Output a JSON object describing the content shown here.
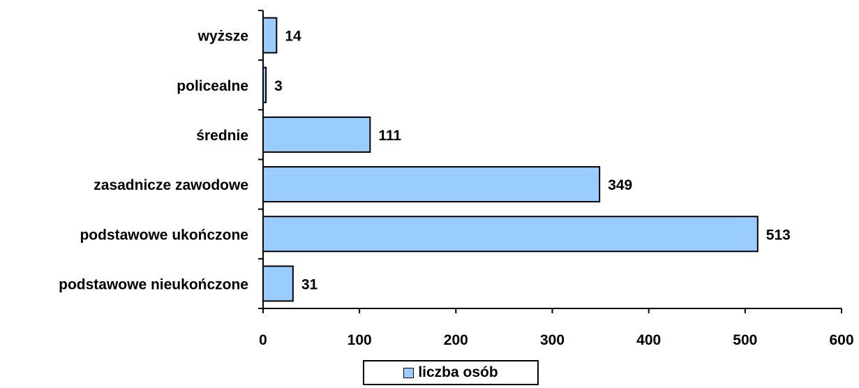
{
  "chart_data": {
    "type": "bar",
    "orientation": "horizontal",
    "categories": [
      "wyższe",
      "policealne",
      "średnie",
      "zasadnicze zawodowe",
      "podstawowe ukończone",
      "podstawowe nieukończone"
    ],
    "series": [
      {
        "name": "liczba osób",
        "values": [
          14,
          3,
          111,
          349,
          513,
          31
        ],
        "color": "#99ccff"
      }
    ],
    "data_labels": [
      "14",
      "3",
      "111",
      "349",
      "513",
      "31"
    ],
    "xlim": [
      0,
      600
    ],
    "x_ticks": [
      0,
      100,
      200,
      300,
      400,
      500,
      600
    ],
    "x_tick_labels": [
      "0",
      "100",
      "200",
      "300",
      "400",
      "500",
      "600"
    ],
    "title": "",
    "xlabel": "",
    "ylabel": "",
    "grid": false,
    "legend_position": "bottom"
  },
  "legend": {
    "label": "liczba osób"
  }
}
